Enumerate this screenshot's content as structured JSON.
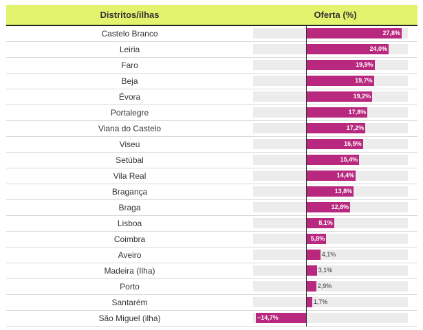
{
  "table": {
    "col_label_header": "Distritos/ilhas",
    "col_value_header": "Oferta (%)"
  },
  "colors": {
    "header_bg": "#e3f36e",
    "bar": "#b8287e",
    "track": "#ececec"
  },
  "chart_data": {
    "type": "bar",
    "orientation": "horizontal",
    "xlabel": "Oferta (%)",
    "ylabel": "Distritos/ilhas",
    "xlim": [
      -15.5,
      29.6
    ],
    "categories": [
      "Castelo Branco",
      "Leiria",
      "Faro",
      "Beja",
      "Évora",
      "Portalegre",
      "Viana do Castelo",
      "Viseu",
      "Setúbal",
      "Vila Real",
      "Bragança",
      "Braga",
      "Lisboa",
      "Coimbra",
      "Aveiro",
      "Madeira (Ilha)",
      "Porto",
      "Santarém",
      "São Miguel (ilha)"
    ],
    "values": [
      27.8,
      24.0,
      19.9,
      19.7,
      19.2,
      17.8,
      17.2,
      16.5,
      15.4,
      14.4,
      13.8,
      12.8,
      8.1,
      5.8,
      4.1,
      3.1,
      2.9,
      1.7,
      -14.7
    ],
    "value_labels": [
      "27,8%",
      "24,0%",
      "19,9%",
      "19,7%",
      "19,2%",
      "17,8%",
      "17,2%",
      "16,5%",
      "15,4%",
      "14,4%",
      "13,8%",
      "12,8%",
      "8,1%",
      "5,8%",
      "4,1%",
      "3,1%",
      "2,9%",
      "1,7%",
      "−14,7%"
    ]
  }
}
